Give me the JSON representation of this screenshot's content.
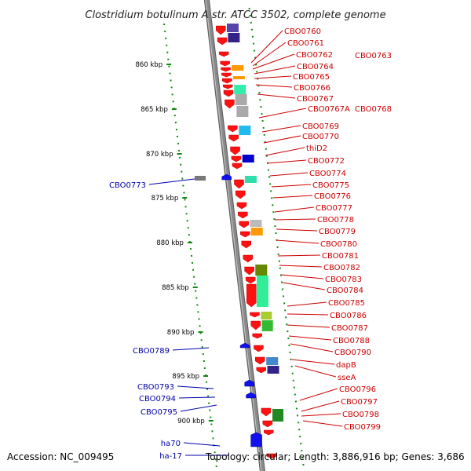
{
  "title": "Clostridium botulinum A str. ATCC 3502, complete genome",
  "footer": {
    "accession": "Accession: NC_009495",
    "topology": "Topology: circular; Length: 3,886,916 bp; Genes: 3,686"
  },
  "colors": {
    "forward_label": "#cc0000",
    "reverse_label": "#0000aa",
    "backbone": "#8a8a8a",
    "tick": "#118811"
  },
  "ticks": [
    "860 kbp",
    "865 kbp",
    "870 kbp",
    "875 kbp",
    "880 kbp",
    "885 kbp",
    "890 kbp",
    "895 kbp",
    "900 kbp"
  ],
  "forward_labels": [
    "CBO0760",
    "CBO0761",
    "CBO0762",
    "CBO0763",
    "CBO0764",
    "CBO0765",
    "CBO0766",
    "CBO0767",
    "CBO0767A",
    "CBO0768",
    "CBO0769",
    "CBO0770",
    "thiD2",
    "CBO0772",
    "CBO0774",
    "CBO0775",
    "CBO0776",
    "CBO0777",
    "CBO0778",
    "CBO0779",
    "CBO0780",
    "CBO0781",
    "CBO0782",
    "CBO0783",
    "CBO0784",
    "CBO0785",
    "CBO0786",
    "CBO0787",
    "CBO0788",
    "CBO0790",
    "dapB",
    "sseA",
    "CBO0796",
    "CBO0797",
    "CBO0798",
    "CBO0799"
  ],
  "reverse_labels": [
    "CBO0773",
    "CBO0789",
    "CBO0793",
    "CBO0794",
    "CBO0795",
    "ha70",
    "ha-17"
  ]
}
